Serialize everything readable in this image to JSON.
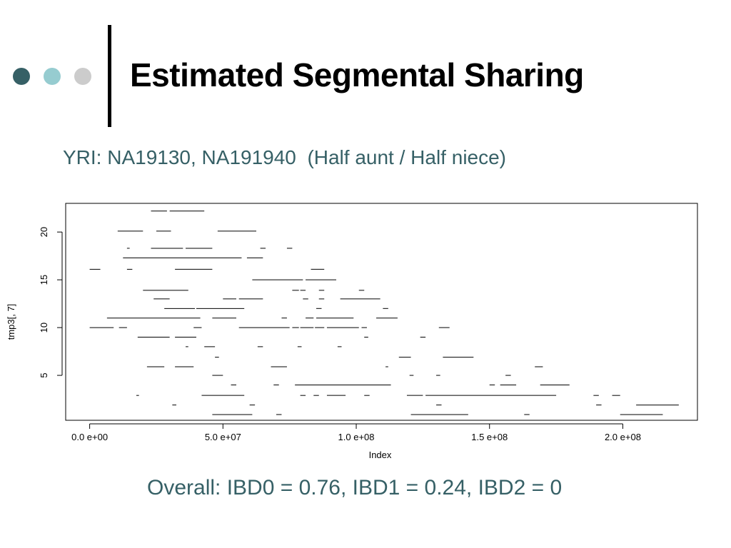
{
  "header": {
    "title": "Estimated Segmental Sharing",
    "subtitle": "YRI: NA19130, NA191940  (Half aunt / Half niece)"
  },
  "footer": {
    "text": "Overall: IBD0 = 0.76, IBD1 = 0.24, IBD2 = 0"
  },
  "theme": {
    "dot_colors": [
      "#366066",
      "#96ccd0",
      "#cccccc"
    ],
    "accent": "#366066"
  },
  "chart_data": {
    "type": "scatter",
    "xlabel": "Index",
    "ylabel": "tmp3[, 7]",
    "xlim": [
      -9000000,
      228000000
    ],
    "ylim": [
      0.3,
      23
    ],
    "x_ticks": [
      0,
      50000000,
      100000000,
      150000000,
      200000000
    ],
    "x_tick_labels": [
      "0.0 e+00",
      "5.0 e+07",
      "1.0 e+08",
      "1.5 e+08",
      "2.0 e+08"
    ],
    "y_ticks": [
      5,
      10,
      15,
      20
    ],
    "y_tick_labels": [
      "5",
      "10",
      "15",
      "20"
    ],
    "segments": [
      {
        "y": 22.2,
        "x": [
          [
            23000000,
            29000000
          ],
          [
            30000000,
            43000000
          ]
        ]
      },
      {
        "y": 20.1,
        "x": [
          [
            10500000,
            20000000
          ],
          [
            25000000,
            30500000
          ],
          [
            48000000,
            62500000
          ]
        ]
      },
      {
        "y": 18.3,
        "x": [
          [
            14000000,
            15000000
          ],
          [
            23000000,
            35000000
          ],
          [
            36000000,
            46000000
          ],
          [
            64000000,
            66000000
          ],
          [
            74000000,
            76000000
          ]
        ]
      },
      {
        "y": 17.3,
        "x": [
          [
            12500000,
            57000000
          ],
          [
            59000000,
            65000000
          ]
        ]
      },
      {
        "y": 16.1,
        "x": [
          [
            0,
            4000000
          ],
          [
            14000000,
            16000000
          ],
          [
            32000000,
            46000000
          ],
          [
            83000000,
            88000000
          ]
        ]
      },
      {
        "y": 15.0,
        "x": [
          [
            61000000,
            80000000
          ],
          [
            81000000,
            92500000
          ]
        ]
      },
      {
        "y": 13.9,
        "x": [
          [
            20000000,
            37000000
          ],
          [
            76000000,
            78500000
          ],
          [
            79000000,
            81000000
          ],
          [
            86000000,
            88000000
          ],
          [
            101000000,
            103000000
          ]
        ]
      },
      {
        "y": 13.0,
        "x": [
          [
            24000000,
            30000000
          ],
          [
            50000000,
            55000000
          ],
          [
            56000000,
            65000000
          ],
          [
            80000000,
            82000000
          ],
          [
            86000000,
            88000000
          ],
          [
            94000000,
            109000000
          ]
        ]
      },
      {
        "y": 12.0,
        "x": [
          [
            28000000,
            39500000
          ],
          [
            40000000,
            58000000
          ],
          [
            85000000,
            87000000
          ],
          [
            110000000,
            112000000
          ]
        ]
      },
      {
        "y": 11.0,
        "x": [
          [
            6500000,
            41500000
          ],
          [
            46000000,
            55000000
          ],
          [
            72000000,
            74000000
          ],
          [
            81000000,
            84000000
          ],
          [
            85000000,
            99000000
          ],
          [
            107500000,
            115500000
          ]
        ]
      },
      {
        "y": 10.0,
        "x": [
          [
            0,
            9000000
          ],
          [
            11000000,
            14000000
          ],
          [
            39000000,
            42000000
          ],
          [
            56000000,
            75000000
          ],
          [
            76000000,
            78500000
          ],
          [
            79000000,
            84000000
          ],
          [
            84500000,
            88000000
          ],
          [
            89000000,
            101000000
          ],
          [
            102000000,
            104000000
          ],
          [
            131000000,
            135000000
          ]
        ]
      },
      {
        "y": 9.0,
        "x": [
          [
            18000000,
            30000000
          ],
          [
            32000000,
            40000000
          ],
          [
            103000000,
            104500000
          ],
          [
            124000000,
            126000000
          ]
        ]
      },
      {
        "y": 8.0,
        "x": [
          [
            36000000,
            37000000
          ],
          [
            43000000,
            47000000
          ],
          [
            63000000,
            65000000
          ],
          [
            78000000,
            79500000
          ],
          [
            93000000,
            94500000
          ]
        ]
      },
      {
        "y": 6.9,
        "x": [
          [
            47000000,
            48500000
          ],
          [
            116000000,
            120500000
          ],
          [
            132500000,
            144000000
          ]
        ]
      },
      {
        "y": 5.9,
        "x": [
          [
            21500000,
            28000000
          ],
          [
            32000000,
            39000000
          ],
          [
            68000000,
            74000000
          ],
          [
            111000000,
            112000000
          ],
          [
            167000000,
            170000000
          ]
        ]
      },
      {
        "y": 5.0,
        "x": [
          [
            46000000,
            50000000
          ],
          [
            120000000,
            121500000
          ],
          [
            130000000,
            131500000
          ],
          [
            156000000,
            158000000
          ]
        ]
      },
      {
        "y": 4.0,
        "x": [
          [
            53000000,
            55000000
          ],
          [
            69000000,
            71000000
          ],
          [
            77000000,
            113000000
          ],
          [
            150000000,
            152000000
          ],
          [
            154000000,
            160000000
          ],
          [
            169000000,
            180000000
          ]
        ]
      },
      {
        "y": 2.9,
        "x": [
          [
            17500000,
            18500000
          ],
          [
            42000000,
            58000000
          ],
          [
            79000000,
            81000000
          ],
          [
            84000000,
            86000000
          ],
          [
            89000000,
            96000000
          ],
          [
            103000000,
            105000000
          ],
          [
            119000000,
            125000000
          ],
          [
            126000000,
            175000000
          ],
          [
            189000000,
            191000000
          ],
          [
            196000000,
            199000000
          ]
        ]
      },
      {
        "y": 1.9,
        "x": [
          [
            31000000,
            32500000
          ],
          [
            60000000,
            62000000
          ],
          [
            130000000,
            132000000
          ],
          [
            190000000,
            192000000
          ],
          [
            205000000,
            221000000
          ]
        ]
      },
      {
        "y": 0.9,
        "x": [
          [
            46000000,
            61000000
          ],
          [
            70000000,
            72000000
          ],
          [
            120500000,
            142000000
          ],
          [
            163000000,
            165000000
          ],
          [
            199000000,
            215000000
          ]
        ]
      }
    ]
  }
}
